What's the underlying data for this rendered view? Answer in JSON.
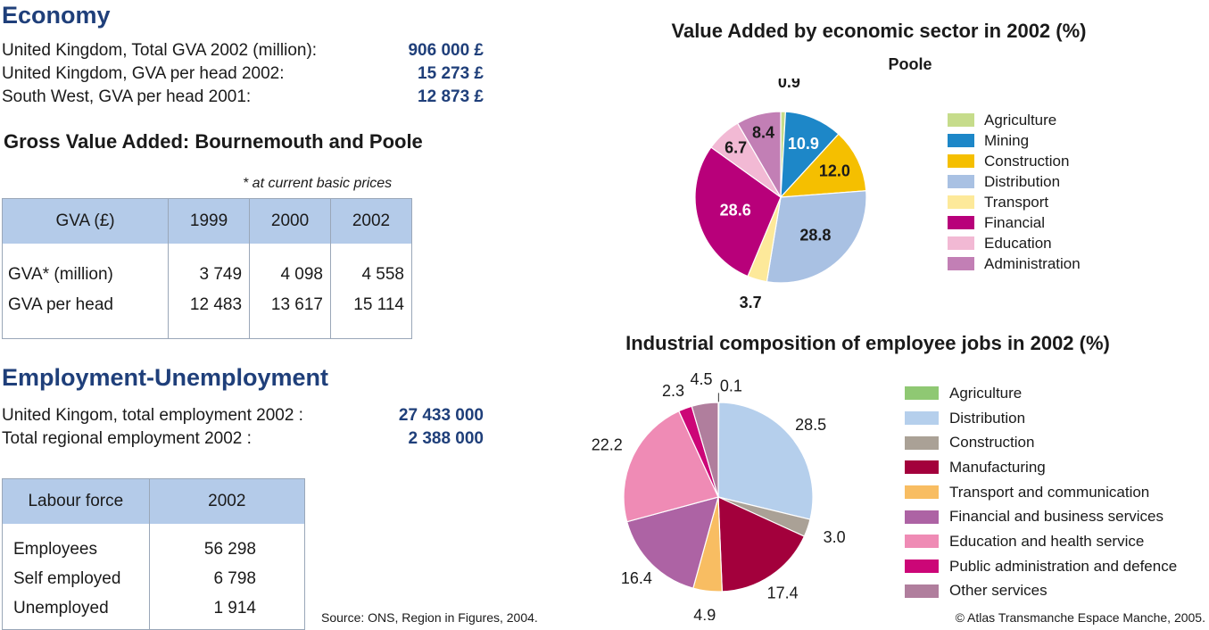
{
  "economy": {
    "title": "Economy",
    "stats": [
      {
        "label": "United Kingdom, Total GVA 2002 (million):",
        "value": "906 000 £"
      },
      {
        "label": "United Kingdom, GVA per head 2002:",
        "value": "15 273 £"
      },
      {
        "label": "South West, GVA per head 2001:",
        "value": "12 873 £"
      }
    ]
  },
  "gva": {
    "title": "Gross Value Added: Bournemouth and Poole",
    "note": "* at current basic prices",
    "headers": [
      "GVA (£)",
      "1999",
      "2000",
      "2002"
    ],
    "rows": [
      [
        "GVA* (million)",
        "3 749",
        "4 098",
        "4 558"
      ],
      [
        "GVA per head",
        "12 483",
        "13 617",
        "15 114"
      ]
    ]
  },
  "employment": {
    "title": "Employment-Unemployment",
    "stats": [
      {
        "label": "United Kingom, total employment 2002 :",
        "value": "27 433 000"
      },
      {
        "label": "Total regional employment 2002 :",
        "value": "2 388 000"
      }
    ]
  },
  "labour": {
    "headers": [
      "Labour force",
      "2002"
    ],
    "rows": [
      [
        "Employees",
        "56 298"
      ],
      [
        "Self employed",
        "6 798"
      ],
      [
        "Unemployed",
        "1 914"
      ]
    ]
  },
  "source": "Source: ONS, Region in Figures, 2004.",
  "copyright": "© Atlas Transmanche Espace Manche, 2005.",
  "chart_data": [
    {
      "type": "pie",
      "title": "Value Added by economic sector in 2002 (%)",
      "subtitle": "Poole",
      "categories": [
        "Agriculture",
        "Mining",
        "Construction",
        "Distribution",
        "Transport",
        "Financial",
        "Education",
        "Administration"
      ],
      "values": [
        0.9,
        10.9,
        12.0,
        28.8,
        3.7,
        28.6,
        6.7,
        8.4
      ],
      "labels": [
        "0.9",
        "10.9",
        "12.0",
        "28.8",
        "3.7",
        "28.6",
        "6.7",
        "8.4"
      ],
      "colors": [
        "#c6dc8b",
        "#1d87c8",
        "#f5bf00",
        "#a9c1e3",
        "#fde99a",
        "#b8007a",
        "#f2b9d4",
        "#c27fb5"
      ],
      "legend": "right"
    },
    {
      "type": "pie",
      "title": "Industrial composition of employee jobs in 2002 (%)",
      "categories": [
        "Agriculture",
        "Distribution",
        "Construction",
        "Manufacturing",
        "Transport and communication",
        "Financial and business services",
        "Education and health service",
        "Public administration and defence",
        "Other services"
      ],
      "values": [
        0.1,
        28.5,
        3.0,
        17.4,
        4.9,
        16.4,
        22.2,
        2.3,
        4.5
      ],
      "labels": [
        "0.1",
        "28.5",
        "3.0",
        "17.4",
        "4.9",
        "16.4",
        "22.2",
        "2.3",
        "4.5"
      ],
      "colors": [
        "#8fc873",
        "#b5cfec",
        "#aaa196",
        "#a3003c",
        "#f8bd62",
        "#ad63a4",
        "#ef8bb5",
        "#cc0677",
        "#b07e9d"
      ],
      "legend": "right"
    }
  ]
}
